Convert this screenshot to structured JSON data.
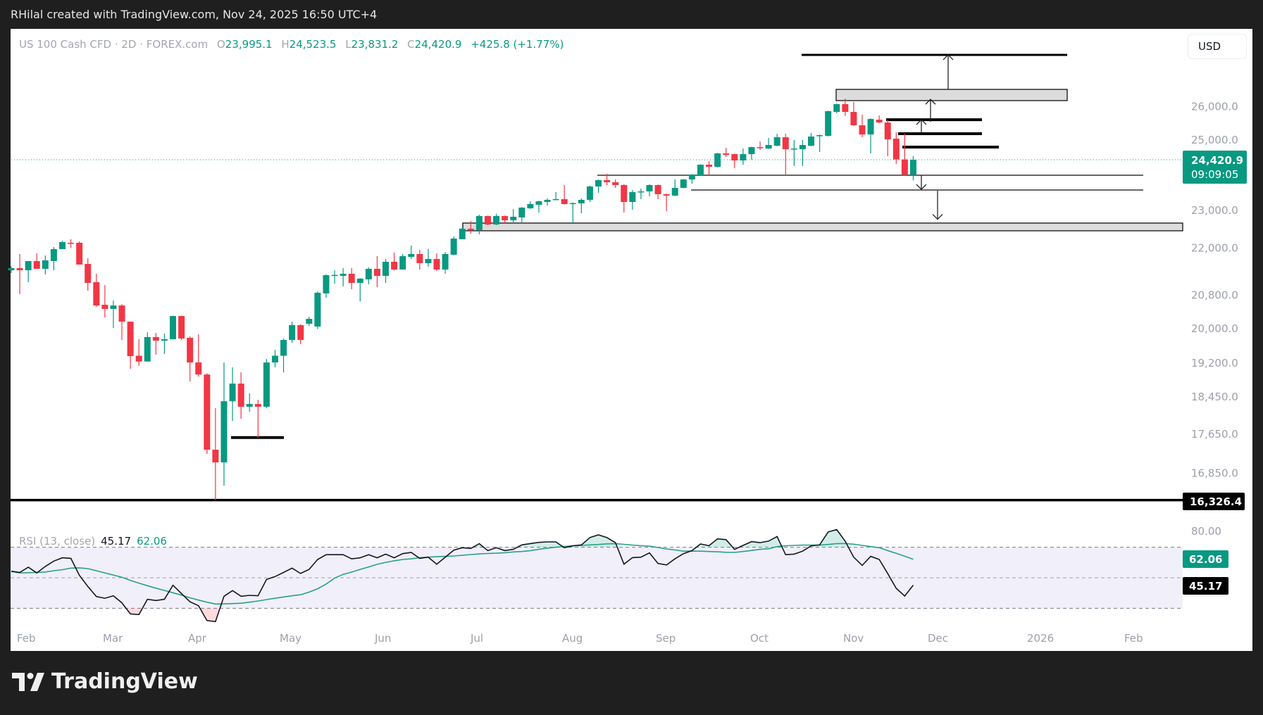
{
  "attribution": "RHilal created with TradingView.com, Nov 24, 2025 16:50 UTC+4",
  "legend": {
    "symbol": "US 100 Cash CFD · 2D · FOREX.com",
    "open_label": "O",
    "open": "23,995.1",
    "high_label": "H",
    "high": "24,523.5",
    "low_label": "L",
    "low": "23,831.2",
    "close_label": "C",
    "close": "24,420.9",
    "change": "+425.8 (+1.77%)"
  },
  "currency_button": "USD",
  "price_tag": {
    "price": "24,420.9",
    "countdown": "09:09:05"
  },
  "level_tag": "16,326.4",
  "rsi_legend": {
    "name": "RSI (13, close)",
    "rsi": "45.17",
    "ma": "62.06"
  },
  "rsi_tags": {
    "ma": "62.06",
    "rsi": "45.17"
  },
  "logo_text": "TradingView",
  "colors": {
    "up": "#089981",
    "down": "#f23645",
    "rsi": "#131722",
    "rsi_ma": "#26a08a",
    "background": "#1f1f1f",
    "panel": "#ffffff"
  },
  "chart_data": [
    {
      "type": "candlestick",
      "title": "US 100 Cash CFD · 2D · FOREX.com",
      "y_scale": "log",
      "y_axis": {
        "ticks": [
          "26,000.0",
          "25,000.0",
          "23,000.0",
          "22,000.0",
          "20,800.0",
          "20,000.0",
          "19,200.0",
          "18,450.0",
          "17,650.0",
          "16,850.0"
        ],
        "tick_values": [
          26000,
          25000,
          23000,
          22000,
          20800,
          20000,
          19200,
          18450,
          17650,
          16850
        ]
      },
      "x_axis": {
        "ticks": [
          "Feb",
          "Mar",
          "Apr",
          "May",
          "Jun",
          "Jul",
          "Aug",
          "Sep",
          "Oct",
          "Nov",
          "Dec",
          "2026",
          "Feb"
        ]
      },
      "ohlc_fields": [
        "open",
        "high",
        "low",
        "close"
      ],
      "candles": [
        [
          21428,
          21536,
          21357,
          21482
        ],
        [
          21482,
          21843,
          20831,
          21428
        ],
        [
          21428,
          21662,
          21127,
          21662
        ],
        [
          21662,
          21861,
          21464,
          21464
        ],
        [
          21464,
          21806,
          21321,
          21680
        ],
        [
          21662,
          22026,
          21428,
          21971
        ],
        [
          21971,
          22191,
          21971,
          22154
        ],
        [
          22136,
          22228,
          22007,
          22117
        ],
        [
          22136,
          22173,
          21572,
          21572
        ],
        [
          21590,
          21734,
          20916,
          21110
        ],
        [
          21127,
          21339,
          20519,
          20553
        ],
        [
          20570,
          21056,
          20264,
          20469
        ],
        [
          20469,
          20674,
          20013,
          20553
        ],
        [
          20553,
          20587,
          19732,
          20164
        ],
        [
          20164,
          20164,
          19070,
          19358
        ],
        [
          19367,
          19749,
          19134,
          19235
        ],
        [
          19235,
          19913,
          19235,
          19799
        ],
        [
          19799,
          19896,
          19391,
          19716
        ],
        [
          19716,
          19880,
          19407,
          19749
        ],
        [
          19749,
          20310,
          19740,
          20298
        ],
        [
          20298,
          20310,
          19732,
          19766
        ],
        [
          19782,
          19815,
          18787,
          19213
        ],
        [
          19213,
          19864,
          18896,
          18941
        ],
        [
          18941,
          18970,
          17242,
          17330
        ],
        [
          17330,
          18202,
          16326,
          17071
        ],
        [
          17071,
          19213,
          16607,
          18352
        ],
        [
          18352,
          19102,
          17931,
          18739
        ],
        [
          18739,
          18989,
          17975,
          18233
        ],
        [
          18233,
          18524,
          18126,
          18292
        ],
        [
          18292,
          18383,
          17576,
          18233
        ],
        [
          18233,
          19292,
          18200,
          19213
        ],
        [
          19213,
          19504,
          19102,
          19367
        ],
        [
          19367,
          19766,
          18989,
          19732
        ],
        [
          19732,
          20164,
          19665,
          20080
        ],
        [
          20080,
          20100,
          19632,
          19732
        ],
        [
          20114,
          20280,
          20060,
          20230
        ],
        [
          20047,
          20899,
          19990,
          20865
        ],
        [
          20848,
          21320,
          20743,
          21303
        ],
        [
          21303,
          21428,
          21092,
          21310
        ],
        [
          21286,
          21482,
          21021,
          21339
        ],
        [
          21339,
          21482,
          20951,
          21110
        ],
        [
          21110,
          21230,
          20656,
          21216
        ],
        [
          21198,
          21500,
          21074,
          21464
        ],
        [
          21464,
          21788,
          21003,
          21286
        ],
        [
          21286,
          21716,
          21110,
          21644
        ],
        [
          21644,
          21880,
          21430,
          21446
        ],
        [
          21446,
          21843,
          21446,
          21788
        ],
        [
          21770,
          22062,
          21716,
          21843
        ],
        [
          21843,
          21952,
          21446,
          21608
        ],
        [
          21608,
          21971,
          21518,
          21716
        ],
        [
          21716,
          21861,
          21410,
          21446
        ],
        [
          21446,
          21898,
          21339,
          21843
        ],
        [
          21825,
          22303,
          21810,
          22247
        ],
        [
          22228,
          22527,
          22228,
          22508
        ],
        [
          22508,
          22714,
          22378,
          22471
        ],
        [
          22471,
          22885,
          22359,
          22847
        ],
        [
          22847,
          22860,
          22601,
          22620
        ],
        [
          22620,
          22904,
          22600,
          22847
        ],
        [
          22847,
          22860,
          22658,
          22733
        ],
        [
          22733,
          23038,
          22639,
          22828
        ],
        [
          22809,
          23090,
          22658,
          23076
        ],
        [
          23057,
          23250,
          23040,
          23173
        ],
        [
          23154,
          23265,
          22942,
          23250
        ],
        [
          23231,
          23327,
          23134,
          23289
        ],
        [
          23300,
          23503,
          23290,
          23310
        ],
        [
          23308,
          23700,
          23160,
          23173
        ],
        [
          23190,
          23215,
          22658,
          23200
        ],
        [
          23192,
          23327,
          22923,
          23289
        ],
        [
          23289,
          23680,
          23231,
          23660
        ],
        [
          23660,
          23860,
          23484,
          23838
        ],
        [
          23838,
          24017,
          23700,
          23779
        ],
        [
          23779,
          23858,
          23621,
          23700
        ],
        [
          23700,
          23720,
          22942,
          23231
        ],
        [
          23231,
          23562,
          23018,
          23503
        ],
        [
          23510,
          23601,
          23308,
          23523
        ],
        [
          23523,
          23720,
          23386,
          23700
        ],
        [
          23700,
          23715,
          23308,
          23445
        ],
        [
          23445,
          23460,
          22980,
          23406
        ],
        [
          23406,
          23858,
          23390,
          23621
        ],
        [
          23621,
          23870,
          23610,
          23858
        ],
        [
          23858,
          24010,
          23739,
          23997
        ],
        [
          23977,
          24290,
          23960,
          24278
        ],
        [
          24278,
          24379,
          23997,
          24217
        ],
        [
          24217,
          24624,
          24200,
          24604
        ],
        [
          24604,
          24767,
          24502,
          24563
        ],
        [
          24583,
          24600,
          24177,
          24400
        ],
        [
          24400,
          24746,
          24278,
          24583
        ],
        [
          24583,
          24800,
          24420,
          24788
        ],
        [
          24788,
          24954,
          24705,
          24767
        ],
        [
          24746,
          25058,
          24730,
          24850
        ],
        [
          24829,
          25183,
          24810,
          25079
        ],
        [
          25079,
          25183,
          23997,
          24726
        ],
        [
          24726,
          24996,
          24238,
          24746
        ],
        [
          24726,
          24996,
          24238,
          24850
        ],
        [
          24829,
          25204,
          24810,
          25100
        ],
        [
          25120,
          25160,
          24645,
          25141
        ],
        [
          25120,
          25880,
          25100,
          25864
        ],
        [
          25842,
          26100,
          25800,
          26080
        ],
        [
          26080,
          26255,
          25713,
          25842
        ],
        [
          25842,
          26146,
          25420,
          25437
        ],
        [
          25437,
          25756,
          25079,
          25162
        ],
        [
          25162,
          25650,
          24604,
          25626
        ],
        [
          25605,
          25734,
          25500,
          25520
        ],
        [
          25520,
          25605,
          24522,
          25016
        ],
        [
          25037,
          25226,
          24298,
          24430
        ],
        [
          24430,
          25190,
          23960,
          23995.1
        ],
        [
          23995.1,
          24523.5,
          23831.2,
          24420.9
        ]
      ],
      "last_price": 24420.9,
      "drawings": {
        "target_line": 27646,
        "upper_zone": [
          26190,
          26540
        ],
        "resistance_lines": [
          25605,
          25183,
          24788
        ],
        "support_lines": [
          23977,
          23562
        ],
        "lower_zone": [
          22452,
          22658
        ],
        "april_support": 17580,
        "low_line": 16326.4
      }
    },
    {
      "type": "line",
      "title": "RSI (13, close)",
      "y_axis": {
        "ticks": [
          "80.00"
        ],
        "levels": [
          70,
          50,
          30
        ]
      },
      "series": [
        {
          "name": "RSI",
          "values": [
            54.3,
            53.5,
            56.9,
            53.2,
            57.4,
            60.9,
            63.1,
            62.7,
            51.7,
            44.3,
            37.7,
            36.6,
            38.2,
            33.6,
            26.3,
            25.9,
            35.9,
            35.1,
            35.9,
            45.1,
            39.7,
            34.3,
            31.7,
            22.0,
            21.3,
            37.9,
            41.6,
            37.9,
            38.5,
            38.2,
            48.9,
            50.8,
            53.5,
            56.3,
            52.8,
            55.5,
            62.0,
            65.1,
            65.1,
            65.1,
            62.4,
            63.1,
            65.1,
            63.1,
            65.5,
            63.1,
            65.8,
            66.6,
            62.7,
            63.5,
            58.9,
            63.5,
            68.1,
            69.7,
            69.2,
            72.3,
            67.8,
            69.7,
            67.8,
            68.6,
            71.5,
            72.4,
            73.2,
            73.5,
            73.5,
            69.7,
            70.9,
            71.5,
            76.3,
            78.1,
            76.3,
            73.0,
            58.9,
            63.2,
            63.5,
            66.3,
            59.4,
            58.4,
            62.4,
            65.8,
            67.8,
            72.1,
            71.0,
            75.5,
            75.0,
            68.6,
            71.2,
            73.7,
            73.0,
            74.0,
            77.0,
            65.1,
            65.5,
            67.4,
            70.9,
            71.5,
            80.0,
            81.5,
            74.0,
            63.5,
            58.1,
            64.0,
            62.0,
            52.8,
            43.1,
            38.0,
            45.17
          ]
        },
        {
          "name": "RSI-based MA",
          "values": [
            54.1,
            53.2,
            53.3,
            53.5,
            53.8,
            54.6,
            55.3,
            56.3,
            56.5,
            56.0,
            54.6,
            53.2,
            51.8,
            50.3,
            48.3,
            46.5,
            44.8,
            43.2,
            41.7,
            40.2,
            38.6,
            36.9,
            35.4,
            34.0,
            32.8,
            32.9,
            33.1,
            33.3,
            34.0,
            34.8,
            35.7,
            36.6,
            37.4,
            38.2,
            38.9,
            40.6,
            42.8,
            45.9,
            49.8,
            52.2,
            53.7,
            55.5,
            57.1,
            58.8,
            60.1,
            61.1,
            62.0,
            62.4,
            63.2,
            63.5,
            63.8,
            64.0,
            64.3,
            64.7,
            65.2,
            65.6,
            65.9,
            66.1,
            66.4,
            66.9,
            67.2,
            67.8,
            68.6,
            69.4,
            70.0,
            70.5,
            70.9,
            71.2,
            71.5,
            71.8,
            72.2,
            72.3,
            71.9,
            71.4,
            71.0,
            70.7,
            69.8,
            68.9,
            68.2,
            67.4,
            67.4,
            67.4,
            67.2,
            67.0,
            66.7,
            66.6,
            67.2,
            67.9,
            68.6,
            69.0,
            70.4,
            70.9,
            71.2,
            71.4,
            71.4,
            71.4,
            71.8,
            72.4,
            72.4,
            72.0,
            71.2,
            70.4,
            69.7,
            67.8,
            66.0,
            64.1,
            62.06
          ]
        }
      ]
    }
  ]
}
